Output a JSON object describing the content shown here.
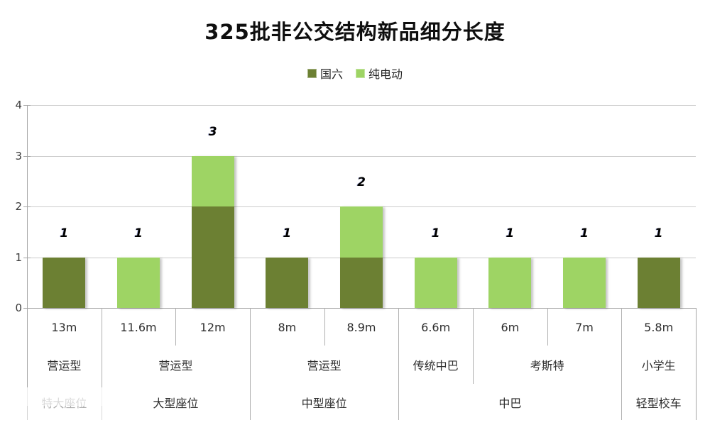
{
  "title": "325批非公交结构新品细分长度",
  "chart_data": {
    "type": "bar",
    "stacked": true,
    "title": "325批非公交结构新品细分长度",
    "legend_position": "top",
    "grid": true,
    "ylim": [
      0,
      4
    ],
    "yticks": [
      "0",
      "1",
      "2",
      "3",
      "4"
    ],
    "categories": [
      "13m",
      "11.6m",
      "12m",
      "8m",
      "8.9m",
      "6.6m",
      "6m",
      "7m",
      "5.8m"
    ],
    "series": [
      {
        "name": "国六",
        "color": "#6c8033",
        "values": [
          1,
          0,
          2,
          1,
          1,
          0,
          0,
          0,
          1
        ]
      },
      {
        "name": "纯电动",
        "color": "#9ed464",
        "values": [
          0,
          1,
          1,
          0,
          1,
          1,
          1,
          1,
          0
        ]
      }
    ],
    "bar_total_labels": [
      "1",
      "1",
      "3",
      "1",
      "2",
      "1",
      "1",
      "1",
      "1"
    ],
    "category_axis_level2": [
      {
        "label": "营运型",
        "start": 0,
        "end": 0
      },
      {
        "label": "营运型",
        "start": 1,
        "end": 2
      },
      {
        "label": "营运型",
        "start": 3,
        "end": 4
      },
      {
        "label": "传统中巴",
        "start": 5,
        "end": 5
      },
      {
        "label": "考斯特",
        "start": 6,
        "end": 7
      },
      {
        "label": "小学生",
        "start": 8,
        "end": 8
      }
    ],
    "category_axis_level3": [
      {
        "label": "特大座位",
        "start": 0,
        "end": 0,
        "faded": true
      },
      {
        "label": "大型座位",
        "start": 1,
        "end": 2
      },
      {
        "label": "中型座位",
        "start": 3,
        "end": 4
      },
      {
        "label": "中巴",
        "start": 5,
        "end": 7
      },
      {
        "label": "轻型校车",
        "start": 8,
        "end": 8
      }
    ]
  }
}
